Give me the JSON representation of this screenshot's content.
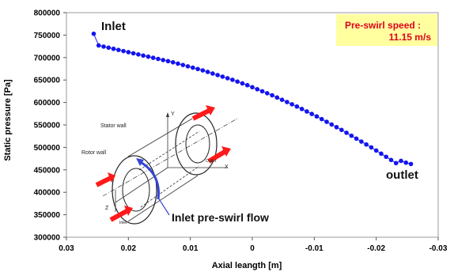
{
  "chart_data": {
    "type": "scatter",
    "xlabel": "Axial leangth [m]",
    "ylabel": "Static pressure [Pa]",
    "xlim": [
      0.03,
      -0.03
    ],
    "ylim": [
      300000,
      800000
    ],
    "x_ticks": [
      "0.03",
      "0.02",
      "0.01",
      "0",
      "-0.01",
      "-0.02",
      "-0.03"
    ],
    "y_ticks": [
      "300000",
      "350000",
      "400000",
      "450000",
      "500000",
      "550000",
      "600000",
      "650000",
      "700000",
      "750000",
      "800000"
    ],
    "series": [
      {
        "x": [
          0.0256,
          0.0248,
          0.024,
          0.0232,
          0.0224,
          0.0216,
          0.0208,
          0.02,
          0.0192,
          0.0184,
          0.0176,
          0.0168,
          0.016,
          0.0152,
          0.0144,
          0.0136,
          0.0128,
          0.012,
          0.0112,
          0.0104,
          0.0096,
          0.0088,
          0.008,
          0.0072,
          0.0064,
          0.0056,
          0.0048,
          0.004,
          0.0032,
          0.0024,
          0.0016,
          0.0008,
          0.0,
          -0.0008,
          -0.0016,
          -0.0024,
          -0.0032,
          -0.004,
          -0.0048,
          -0.0056,
          -0.0064,
          -0.0072,
          -0.008,
          -0.0088,
          -0.0096,
          -0.0104,
          -0.0112,
          -0.012,
          -0.0128,
          -0.0136,
          -0.0144,
          -0.0152,
          -0.016,
          -0.0168,
          -0.0176,
          -0.0184,
          -0.0192,
          -0.02,
          -0.0208,
          -0.0216,
          -0.0224,
          -0.0232,
          -0.024,
          -0.0248,
          -0.0256
        ],
        "y": [
          753000,
          727000,
          724500,
          722000,
          719500,
          717000,
          714500,
          712000,
          709500,
          707000,
          704500,
          702000,
          699500,
          697000,
          694500,
          692000,
          689500,
          686500,
          683500,
          680500,
          677500,
          674500,
          671500,
          668000,
          664500,
          661000,
          657500,
          654000,
          650500,
          646500,
          642500,
          638500,
          634000,
          629500,
          625000,
          620500,
          616000,
          611000,
          606000,
          601000,
          596000,
          591000,
          585500,
          580000,
          574500,
          569000,
          563000,
          557000,
          551000,
          545000,
          539000,
          532500,
          526000,
          519500,
          513000,
          506500,
          500000,
          493000,
          486000,
          479000,
          472000,
          465000,
          470000,
          466000,
          463000
        ]
      }
    ],
    "annotations": {
      "inlet": "Inlet",
      "outlet": "outlet",
      "preswirl_line1": "Pre-swirl speed :",
      "preswirl_line2": "11.15 m/s",
      "inlet_flow": "Inlet pre-swirl flow"
    }
  },
  "diagram": {
    "stator_wall": "Stator wall",
    "rotor_wall": "Rotor wall",
    "axis_y": "Y",
    "axis_x": "X",
    "axis_z": "Z",
    "inlet_small": "Inlet",
    "outlet_small": "Outlet"
  }
}
